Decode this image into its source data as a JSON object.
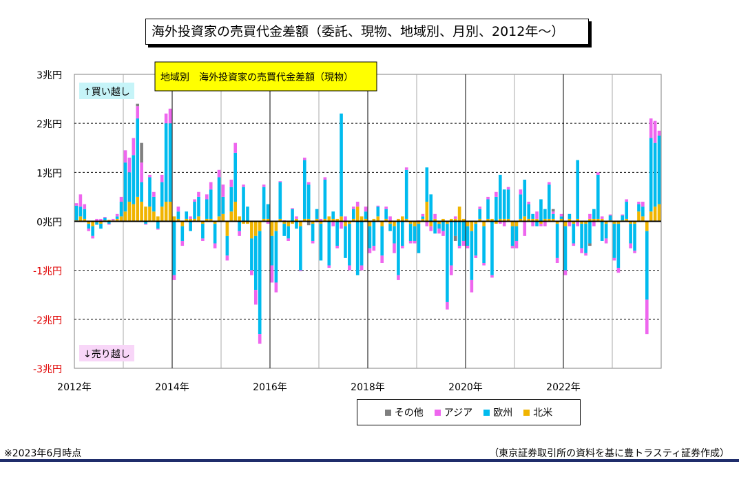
{
  "title": "海外投資家の売買代金差額（委託、現物、地域別、月別、2012年～）",
  "footnote": "※2023年6月時点",
  "source": "（東京証券取引所の資料を基に豊トラスティ証券作成）",
  "chart_data": {
    "type": "bar",
    "stacked": true,
    "title": "地域別　海外投資家の売買代金差額（現物）",
    "unit": "兆円",
    "annotations": {
      "buy": "↑買い越し",
      "sell": "↓売り越し"
    },
    "y_ticks": [
      "3兆円",
      "2兆円",
      "1兆円",
      "0兆円",
      "-1兆円",
      "-2兆円",
      "-3兆円"
    ],
    "ylim": [
      -3,
      3
    ],
    "x_ticks": [
      "2012年",
      "2014年",
      "2016年",
      "2018年",
      "2020年",
      "2022年"
    ],
    "x_tick_years": [
      2012,
      2014,
      2016,
      2018,
      2020,
      2022
    ],
    "x_start": "2012-01",
    "grid": true,
    "legend_position": "bottom",
    "series": [
      {
        "name": "その他",
        "color": "#7f7f7f",
        "values": [
          0,
          0,
          0,
          0,
          0,
          0,
          0,
          0,
          0,
          0,
          0,
          0,
          0,
          0,
          0,
          0.05,
          0.4,
          0,
          0,
          0,
          0,
          0,
          0,
          0,
          0,
          0,
          0,
          0,
          0,
          0,
          0,
          0,
          0,
          0,
          0,
          0,
          0,
          0,
          0,
          0,
          0,
          0,
          0,
          0,
          0,
          0,
          0,
          0,
          0,
          0,
          0,
          0,
          0,
          0,
          0,
          0,
          0,
          -0.08,
          0,
          0,
          0,
          0,
          0,
          0,
          0,
          0,
          0,
          0,
          0,
          0,
          0,
          0,
          0,
          0,
          0,
          0,
          0,
          0,
          0,
          0,
          0,
          0,
          0,
          0,
          0,
          0,
          0,
          0,
          0,
          0,
          0,
          0,
          0,
          -0.1,
          0,
          0,
          0,
          0,
          0,
          0,
          0,
          0,
          0,
          0,
          0,
          0,
          0,
          0,
          0,
          0,
          0,
          0,
          0,
          0,
          0,
          0,
          0,
          0.05,
          0,
          0,
          0,
          0,
          0,
          0,
          0,
          0,
          -0.05,
          0,
          0,
          0,
          0,
          0,
          0,
          0,
          0,
          0,
          0,
          0,
          0,
          0,
          0,
          0,
          0,
          0
        ]
      },
      {
        "name": "アジア",
        "color": "#ee66ee",
        "values": [
          0.05,
          0.25,
          0.1,
          -0.05,
          -0.05,
          0.05,
          0.05,
          0.02,
          -0.02,
          0.03,
          0.05,
          0.1,
          0.25,
          0.3,
          0.35,
          0.25,
          0.4,
          -0.02,
          0.05,
          0.1,
          -0.02,
          0.15,
          0.2,
          0.3,
          -0.1,
          0.1,
          -0.1,
          0,
          0.05,
          0.05,
          0.1,
          -0.05,
          0.1,
          0.15,
          -0.1,
          0.15,
          0.25,
          -0.1,
          0.15,
          0.2,
          -0.1,
          0.05,
          0,
          -0.1,
          -0.3,
          -0.2,
          0.05,
          -0.05,
          -0.35,
          -0.2,
          0.02,
          0.02,
          -0.05,
          0.02,
          0.05,
          -0.02,
          0.05,
          0.05,
          -0.05,
          -0.02,
          0.05,
          0.05,
          -0.05,
          -0.1,
          -0.05,
          -0.15,
          0.1,
          -0.1,
          0.05,
          0.1,
          -0.1,
          0.1,
          -0.1,
          -0.1,
          0.02,
          -0.15,
          0.05,
          0.1,
          -0.2,
          -0.1,
          -0.05,
          0.05,
          -0.05,
          -0.05,
          0.02,
          0.05,
          -0.1,
          -0.1,
          0.1,
          -0.1,
          -0.1,
          -0.15,
          -0.2,
          0.05,
          -0.05,
          -0.1,
          -0.05,
          -0.25,
          -0.05,
          0.05,
          -0.05,
          0.05,
          -0.05,
          0.1,
          -0.05,
          -0.1,
          0.05,
          -0.05,
          -0.15,
          0.1,
          -0.3,
          0.05,
          -0.1,
          0.15,
          -0.05,
          -0.1,
          0.05,
          0.05,
          -0.1,
          0.05,
          -0.1,
          -0.1,
          -0.05,
          -0.1,
          -0.1,
          -0.05,
          0.1,
          -0.1,
          0.05,
          0.05,
          -0.1,
          0.02,
          -0.05,
          -0.1,
          0.02,
          0.05,
          -0.1,
          -0.05,
          0.05,
          0.1,
          -0.7,
          0.4,
          0.45,
          0.1
        ]
      },
      {
        "name": "欧州",
        "color": "#00bbee",
        "values": [
          0.3,
          0.2,
          0.2,
          -0.1,
          -0.2,
          -0.05,
          -0.1,
          0.05,
          -0.05,
          0,
          0.05,
          0.3,
          1.0,
          0.6,
          1.0,
          1.6,
          0.4,
          -0.05,
          0.6,
          0.3,
          -0.15,
          0.5,
          1.6,
          1.6,
          -1.1,
          0.15,
          -0.3,
          0.15,
          -0.2,
          0.35,
          0.4,
          -0.3,
          0.4,
          0.6,
          -0.4,
          0.8,
          0.35,
          -0.4,
          0.5,
          1.0,
          -0.2,
          0.7,
          0.3,
          -0.65,
          -1.1,
          -2.1,
          0.65,
          0.3,
          -0.6,
          -1.05,
          0.75,
          -0.25,
          -0.25,
          0.25,
          -0.15,
          -0.9,
          1.2,
          0.7,
          -0.35,
          0.2,
          -0.75,
          0.8,
          -0.9,
          0.15,
          -0.5,
          2.1,
          -0.65,
          -0.85,
          0.2,
          -1.1,
          -0.9,
          0.15,
          -0.45,
          -0.5,
          0.2,
          -0.6,
          0.2,
          -0.15,
          -0.35,
          -1.1,
          -0.5,
          1.0,
          -0.35,
          -0.3,
          -0.6,
          0.05,
          0.7,
          0.55,
          -0.25,
          -0.1,
          -0.2,
          -1.6,
          -0.9,
          -0.3,
          -0.5,
          -0.4,
          -0.4,
          -1.0,
          -0.65,
          0.2,
          -0.75,
          0.4,
          -1.1,
          0.5,
          0.9,
          0.6,
          0.6,
          -0.4,
          -0.3,
          0.5,
          0.75,
          0.3,
          0.1,
          -0.1,
          0.45,
          0.2,
          0.7,
          0.1,
          -0.7,
          0.05,
          -0.9,
          0.1,
          -0.4,
          1.2,
          -0.5,
          -0.6,
          -0.45,
          0.2,
          0.9,
          -0.4,
          -0.3,
          0.1,
          -0.7,
          -0.9,
          0.1,
          0.35,
          -0.4,
          -0.55,
          0.15,
          0.2,
          -1.4,
          1.5,
          1.3,
          1.4
        ]
      },
      {
        "name": "北米",
        "color": "#f0b400",
        "values": [
          0.02,
          0.1,
          0.05,
          -0.05,
          -0.1,
          -0.02,
          -0.05,
          0.02,
          0.03,
          0.02,
          0.05,
          0.1,
          0.2,
          0.4,
          0.35,
          0.5,
          0.4,
          0.3,
          0.3,
          0.2,
          0.1,
          0.3,
          0.4,
          0.4,
          0.1,
          0.05,
          -0.1,
          0.05,
          0.05,
          0.05,
          0.1,
          -0.05,
          0.05,
          0.05,
          -0.05,
          0.1,
          0.15,
          -0.3,
          0.2,
          0.4,
          0.1,
          -0.05,
          -0.05,
          -0.35,
          -0.3,
          -0.2,
          0.05,
          0.05,
          -0.3,
          -0.2,
          0.05,
          -0.05,
          -0.1,
          -0.05,
          0.05,
          -0.1,
          0.05,
          0.05,
          -0.05,
          0.05,
          -0.05,
          0.05,
          0.1,
          0.05,
          0.05,
          0.1,
          -0.1,
          -0.05,
          0.05,
          0.3,
          0.1,
          0.05,
          -0.1,
          0.05,
          0.1,
          -0.1,
          0.05,
          -0.05,
          -0.1,
          0.05,
          0.1,
          0.05,
          -0.05,
          -0.1,
          -0.05,
          0.05,
          0.4,
          -0.1,
          0.05,
          -0.05,
          0.05,
          -0.05,
          0.05,
          0.05,
          0.3,
          0.05,
          -0.1,
          -0.2,
          -0.05,
          0.05,
          -0.1,
          0.05,
          0.05,
          -0.05,
          0.05,
          0.05,
          0.05,
          -0.1,
          -0.1,
          0.05,
          0.1,
          0.05,
          0.05,
          0.05,
          -0.05,
          0.05,
          0.05,
          0.05,
          -0.05,
          0.05,
          -0.1,
          0.05,
          -0.05,
          0.05,
          -0.05,
          -0.05,
          0.05,
          0.05,
          0.05,
          0.05,
          -0.05,
          0.02,
          -0.05,
          -0.05,
          0.02,
          0.05,
          -0.05,
          -0.05,
          0.2,
          0.1,
          -0.2,
          0.2,
          0.3,
          0.35
        ]
      }
    ]
  }
}
